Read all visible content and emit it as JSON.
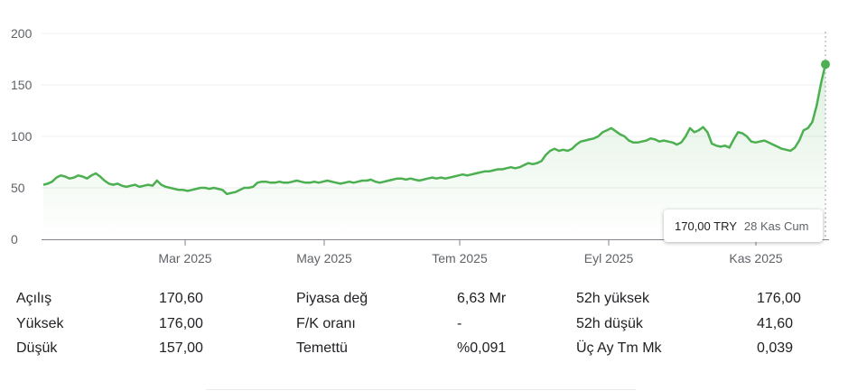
{
  "chart_data": {
    "type": "area",
    "yticks": [
      "0",
      "50",
      "100",
      "150",
      "200"
    ],
    "ylim": [
      0,
      200
    ],
    "xticks": [
      "Mar 2025",
      "May 2025",
      "Tem 2025",
      "Eyl 2025",
      "Kas 2025"
    ],
    "grid": true,
    "color": "#4caf50",
    "series": [
      {
        "values": [
          53,
          54,
          56,
          60,
          62,
          61,
          59,
          60,
          62,
          61,
          59,
          62,
          64,
          61,
          57,
          54,
          53,
          54,
          52,
          51,
          52,
          53,
          51,
          52,
          53,
          52,
          57,
          53,
          51,
          50,
          49,
          48,
          48,
          47,
          48,
          49,
          50,
          50,
          49,
          50,
          49,
          48,
          44,
          45,
          46,
          48,
          50,
          50,
          51,
          55,
          56,
          56,
          55,
          55,
          56,
          55,
          55,
          56,
          57,
          56,
          55,
          55,
          56,
          55,
          56,
          57,
          56,
          55,
          54,
          55,
          56,
          55,
          56,
          57,
          57,
          58,
          56,
          55,
          56,
          57,
          58,
          59,
          59,
          58,
          59,
          58,
          57,
          58,
          59,
          60,
          59,
          60,
          59,
          60,
          61,
          62,
          63,
          62,
          63,
          64,
          65,
          66,
          66,
          67,
          68,
          68,
          69,
          70,
          69,
          70,
          72,
          74,
          73,
          74,
          76,
          82,
          86,
          88,
          86,
          87,
          86,
          88,
          92,
          95,
          96,
          97,
          98,
          100,
          104,
          106,
          108,
          105,
          102,
          100,
          96,
          94,
          94,
          95,
          96,
          98,
          97,
          95,
          96,
          95,
          94,
          92,
          94,
          100,
          108,
          104,
          106,
          109,
          104,
          93,
          91,
          90,
          91,
          89,
          97,
          104,
          103,
          100,
          95,
          94,
          95,
          96,
          94,
          92,
          90,
          88,
          87,
          86,
          89,
          96,
          106,
          108,
          114,
          130,
          152,
          170
        ]
      }
    ]
  },
  "tooltip": {
    "value": "170,00 TRY",
    "date": "28 Kas Cum"
  },
  "stats": [
    {
      "label1": "Açılış",
      "value1": "170,60",
      "label2": "Piyasa değ",
      "value2": "6,63 Mr",
      "label3": "52h yüksek",
      "value3": "176,00"
    },
    {
      "label1": "Yüksek",
      "value1": "176,00",
      "label2": "F/K oranı",
      "value2": "-",
      "label3": "52h düşük",
      "value3": "41,60"
    },
    {
      "label1": "Düşük",
      "value1": "157,00",
      "label2": "Temettü",
      "value2": "%0,091",
      "label3": "Üç Ay Tm Mk",
      "value3": "0,039"
    }
  ]
}
